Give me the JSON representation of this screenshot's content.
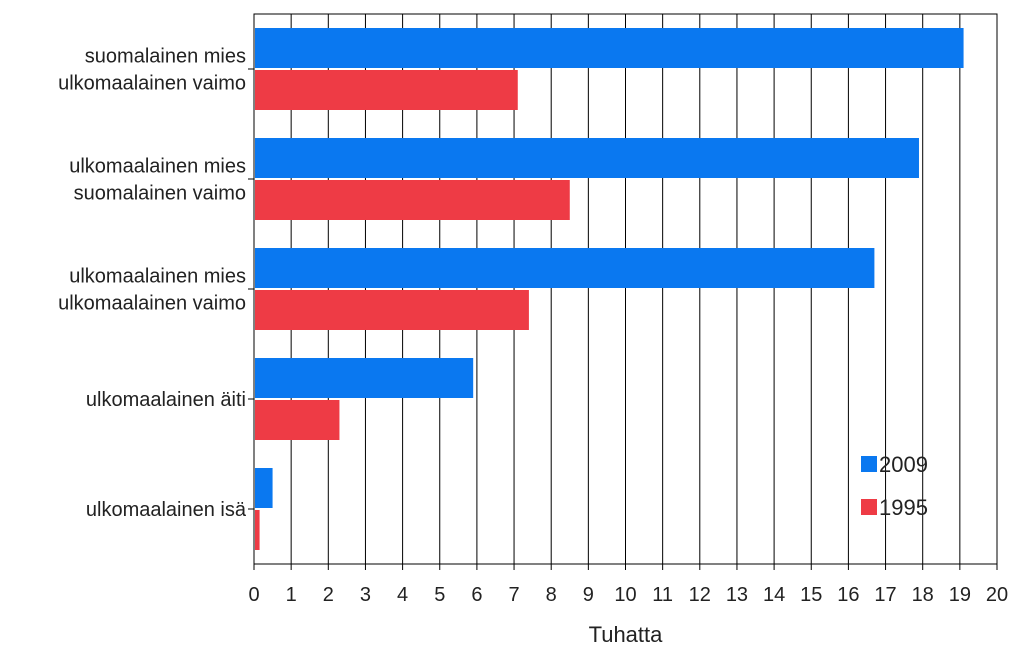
{
  "chart_data": {
    "type": "bar",
    "orientation": "horizontal",
    "categories": [
      [
        "suomalainen mies",
        "ulkomaalainen vaimo"
      ],
      [
        "ulkomaalainen mies",
        "suomalainen vaimo"
      ],
      [
        "ulkomaalainen mies",
        "ulkomaalainen vaimo"
      ],
      [
        "ulkomaalainen äiti"
      ],
      [
        "ulkomaalainen isä"
      ]
    ],
    "series": [
      {
        "name": "2009",
        "color": "#0a78f0",
        "values": [
          19.1,
          17.9,
          16.7,
          5.9,
          0.5
        ]
      },
      {
        "name": "1995",
        "color": "#ee3b45",
        "values": [
          7.1,
          8.5,
          7.4,
          2.3,
          0.15
        ]
      }
    ],
    "xlabel": "Tuhatta",
    "xlim": [
      0,
      20
    ],
    "xticks": [
      "0",
      "1",
      "2",
      "3",
      "4",
      "5",
      "6",
      "7",
      "8",
      "9",
      "10",
      "11",
      "12",
      "13",
      "14",
      "15",
      "16",
      "17",
      "18",
      "19",
      "20"
    ],
    "grid": "vertical",
    "legend": "bottom-right"
  }
}
